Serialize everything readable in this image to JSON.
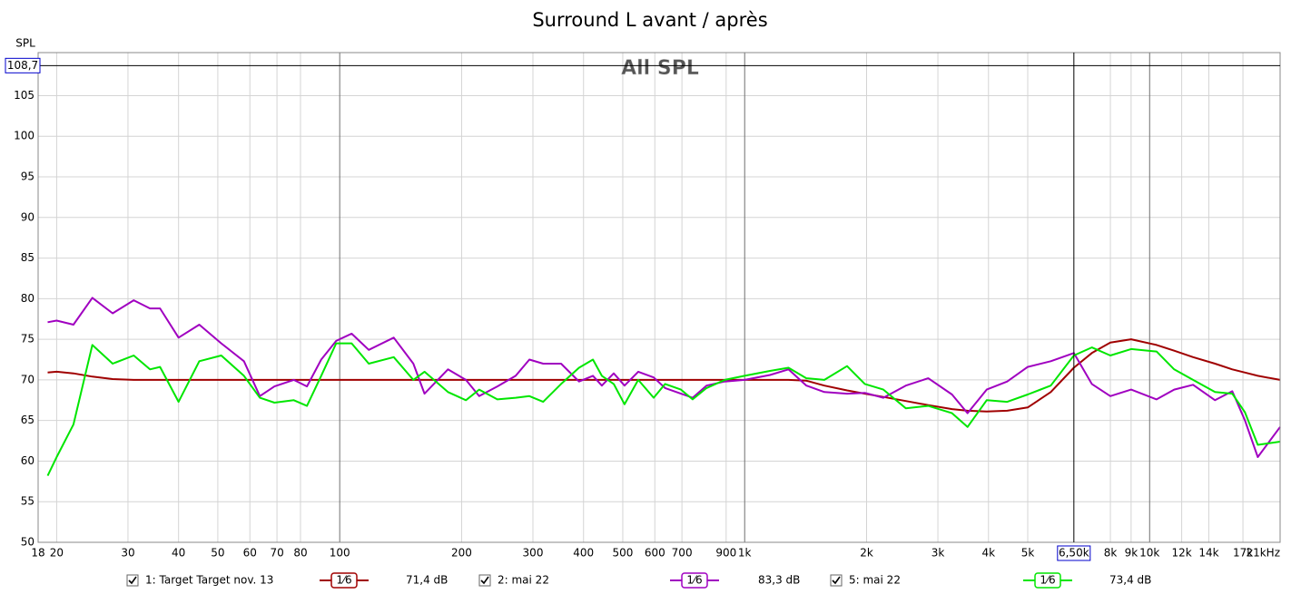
{
  "chart_data": {
    "type": "line",
    "title": "Surround L avant / après",
    "overlay_label": "All SPL",
    "y_label": "SPL",
    "x_scale": "log",
    "grid": true,
    "xlim": [
      18,
      21000
    ],
    "ylim": [
      50,
      110.3
    ],
    "xticks": [
      18,
      20,
      30,
      40,
      50,
      60,
      70,
      80,
      100,
      200,
      300,
      400,
      500,
      600,
      700,
      900,
      {
        "value": 1000,
        "label": "1k"
      },
      {
        "value": 2000,
        "label": "2k"
      },
      {
        "value": 3000,
        "label": "3k"
      },
      {
        "value": 4000,
        "label": "4k"
      },
      {
        "value": 5000,
        "label": "5k"
      },
      {
        "value": 8000,
        "label": "8k"
      },
      {
        "value": 9000,
        "label": "9k"
      },
      {
        "value": 10000,
        "label": "10k"
      },
      {
        "value": 12000,
        "label": "12k"
      },
      {
        "value": 14000,
        "label": "14k"
      },
      {
        "value": 17000,
        "label": "17k"
      },
      {
        "value": 21000,
        "label": "21kHz"
      }
    ],
    "yticks": [
      50,
      55,
      60,
      65,
      70,
      75,
      80,
      85,
      90,
      95,
      100,
      105
    ],
    "cursor": {
      "x": 6500,
      "x_label": "6,50k",
      "y": 108.7,
      "y_label": "108,7"
    },
    "x": [
      19,
      20,
      22,
      24.5,
      27.5,
      31,
      34,
      36,
      40,
      45,
      51,
      58,
      63.5,
      69,
      77,
      83,
      90,
      98,
      107,
      118,
      136,
      152,
      162,
      185,
      205,
      221,
      245,
      272,
      294,
      318,
      352,
      390,
      422,
      444,
      475,
      505,
      546,
      596,
      636,
      696,
      744,
      805,
      893,
      1000,
      1155,
      1283,
      1420,
      1573,
      1790,
      1980,
      2200,
      2500,
      2840,
      3250,
      3550,
      3960,
      4450,
      5000,
      5700,
      6500,
      7200,
      8000,
      9000,
      10400,
      11500,
      12800,
      14500,
      16000,
      17200,
      18500,
      21000
    ],
    "series": [
      {
        "name": "1: Target Target nov. 13",
        "color": "#a00000",
        "smoothing": "1⁄6",
        "level": "71,4 dB",
        "values": [
          70.9,
          71,
          70.8,
          70.4,
          70.1,
          70,
          70,
          70,
          70,
          70,
          70,
          70,
          70,
          70,
          70,
          70,
          70,
          70,
          70,
          70,
          70,
          70,
          70,
          70,
          70,
          70,
          70,
          70,
          70,
          70,
          70,
          70,
          70,
          70,
          70,
          70,
          70,
          70,
          70,
          70,
          70,
          70,
          70,
          70,
          70,
          70,
          69.9,
          69.3,
          68.7,
          68.3,
          67.9,
          67.4,
          66.9,
          66.4,
          66.2,
          66.1,
          66.2,
          66.6,
          68.5,
          71.5,
          73.3,
          74.6,
          75,
          74.3,
          73.6,
          72.8,
          72,
          71.3,
          70.9,
          70.5,
          70.0
        ]
      },
      {
        "name": "2: mai 22",
        "color": "#a000c0",
        "smoothing": "1⁄6",
        "level": "83,3 dB",
        "values": [
          77.1,
          77.3,
          76.8,
          80.1,
          78.2,
          79.8,
          78.8,
          78.8,
          75.2,
          76.8,
          74.5,
          72.3,
          68,
          69.2,
          70,
          69.2,
          72.5,
          74.8,
          75.7,
          73.7,
          75.2,
          72,
          68.3,
          71.3,
          70,
          68,
          69.2,
          70.5,
          72.5,
          72,
          72,
          69.8,
          70.5,
          69.3,
          70.8,
          69.3,
          71,
          70.3,
          69,
          68.3,
          67.8,
          69.3,
          69.8,
          70,
          70.6,
          71.3,
          69.3,
          68.5,
          68.3,
          68.4,
          67.8,
          69.3,
          70.2,
          68.2,
          65.9,
          68.8,
          69.8,
          71.6,
          72.3,
          73.3,
          69.5,
          68,
          68.8,
          67.6,
          68.8,
          69.4,
          67.5,
          68.6,
          65,
          60.5,
          64.2
        ]
      },
      {
        "name": "5: mai 22",
        "color": "#00e600",
        "smoothing": "1⁄6",
        "level": "73,4 dB",
        "values": [
          58.2,
          60.5,
          64.5,
          74.3,
          72,
          73,
          71.3,
          71.6,
          67.3,
          72.3,
          73,
          70.5,
          67.8,
          67.2,
          67.5,
          66.8,
          70.5,
          74.5,
          74.5,
          72,
          72.8,
          70,
          71,
          68.5,
          67.5,
          68.8,
          67.6,
          67.8,
          68,
          67.3,
          69.5,
          71.5,
          72.5,
          70.5,
          69.5,
          67,
          70,
          67.8,
          69.5,
          68.8,
          67.6,
          69,
          70,
          70.5,
          71.1,
          71.5,
          70.2,
          70,
          71.7,
          69.5,
          68.8,
          66.5,
          66.8,
          65.9,
          64.2,
          67.5,
          67.3,
          68.2,
          69.3,
          73,
          74,
          73,
          73.8,
          73.5,
          71.3,
          70,
          68.5,
          68.3,
          66,
          62,
          62.4
        ]
      }
    ]
  }
}
